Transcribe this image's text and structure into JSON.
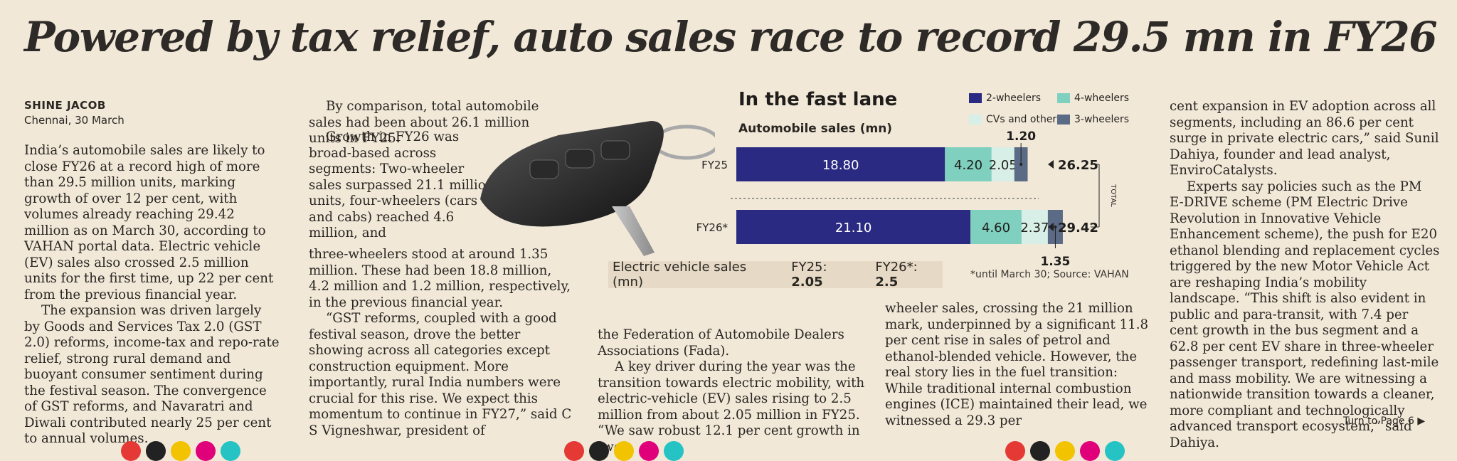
{
  "headline": "Powered by tax relief, auto sales race to record 29.5 mn in FY26",
  "byline": {
    "name": "SHINE JACOB",
    "dateline": "Chennai, 30 March"
  },
  "col1": [
    "India’s automobile sales are likely to close FY26 at a record high of more than 29.5 million units, marking growth of over 12 per cent, with volumes already reaching 29.42 million as on March 30, according to VAHAN portal data. Electric vehicle (EV) sales also crossed 2.5 million units for the first time, up 22 per cent from the previous financial year.",
    "The expansion was driven largely by Goods and Services Tax 2.0 (GST 2.0) reforms, income-tax and repo-rate relief, strong rural demand and buoyant consumer sentiment during the festival season. The convergence of GST reforms, and Navaratri and Diwali contributed nearly 25 per cent to annual volumes."
  ],
  "col2_intro": "By comparison, total automobile sales had been about 26.1 million units in FY25.",
  "col2_narrow": "Growth in FY26 was broad-based across segments: Two-wheeler sales surpassed 21.1 million units, four-wheelers (cars and cabs) reached 4.6 million, and",
  "col2_wide": "three-wheelers stood at around 1.35 million. These had been 18.8 million, 4.2 million and 1.2 million, respectively, in the previous financial year.",
  "col2_quote": "“GST reforms, coupled with a good festival season, drove the better showing across all categories except construction equipment. More importantly, rural India numbers were crucial for this rise. We expect this momentum to continue in FY27,” said C S Vigneshwar, president of",
  "col3": [
    "the Federation of Automobile Dealers Associations (Fada).",
    "A key driver during the year was the transition towards electric mobility, with electric-vehicle (EV) sales rising to 2.5 million from about 2.05 million in FY25. “We saw robust 12.1 per cent growth in two-"
  ],
  "col4": "wheeler sales, crossing the 21 million mark, underpinned by a significant 11.8 per cent rise in sales of petrol and ethanol-blended vehicle. However, the real story lies in the fuel transition: While traditional internal combustion engines (ICE) maintained their lead, we witnessed a 29.3 per",
  "col5": [
    "cent expansion in EV adoption across all segments, including an 86.6 per cent surge in private electric cars,” said Sunil Dahiya, founder and lead analyst, EnviroCatalysts.",
    "Experts say policies such as the PM E-DRIVE scheme (PM Electric Drive Revolution in Innovative Vehicle Enhancement scheme), the push for E20 ethanol blending and replacement cycles triggered by the new Motor Vehicle Act are reshaping India’s mobility landscape. “This shift is also evident in public and para-transit, with 7.4 per cent growth in the bus segment and a 62.8 per cent EV share in three-wheeler passenger transport, redefining last-mile and mass mobility. We are witnessing a nationwide transition towards a cleaner, more compliant and technologically advanced transport ecosystem,” said Dahiya."
  ],
  "turn_page": "Turn to Page 6",
  "chart_data": {
    "type": "bar",
    "stacked": true,
    "orientation": "horizontal",
    "title": "In the fast lane",
    "subtitle": "Automobile sales (mn)",
    "categories": [
      "FY25",
      "FY26*"
    ],
    "series": [
      {
        "name": "2-wheelers",
        "values": [
          18.8,
          21.1
        ],
        "color": "#2b2a83"
      },
      {
        "name": "4-wheelers",
        "values": [
          4.2,
          4.6
        ],
        "color": "#7fd0bf"
      },
      {
        "name": "CVs and others",
        "values": [
          2.05,
          2.37
        ],
        "color": "#d7efe6"
      },
      {
        "name": "3-wheelers",
        "values": [
          1.2,
          1.35
        ],
        "color": "#5b6b86"
      }
    ],
    "labels": [
      [
        "18.80",
        "4.20",
        "2.05",
        "1.20"
      ],
      [
        "21.10",
        "4.60",
        "2.37",
        "1.35"
      ]
    ],
    "totals": [
      "26.25",
      "29.42"
    ],
    "total_label": "TOTAL",
    "ev": {
      "label": "Electric vehicle sales (mn)",
      "fy25_label": "FY25:",
      "fy25": "2.05",
      "fy26_label": "FY26*:",
      "fy26": "2.5"
    },
    "source": "*until March 30; Source: VAHAN"
  },
  "colors": {
    "ink": "#2a2622",
    "paper": "#f1e8d8",
    "panel": "#e6dac6"
  },
  "print_dots": [
    "#e53935",
    "#222222",
    "#f2c300",
    "#e0007a",
    "#25c3c3"
  ]
}
